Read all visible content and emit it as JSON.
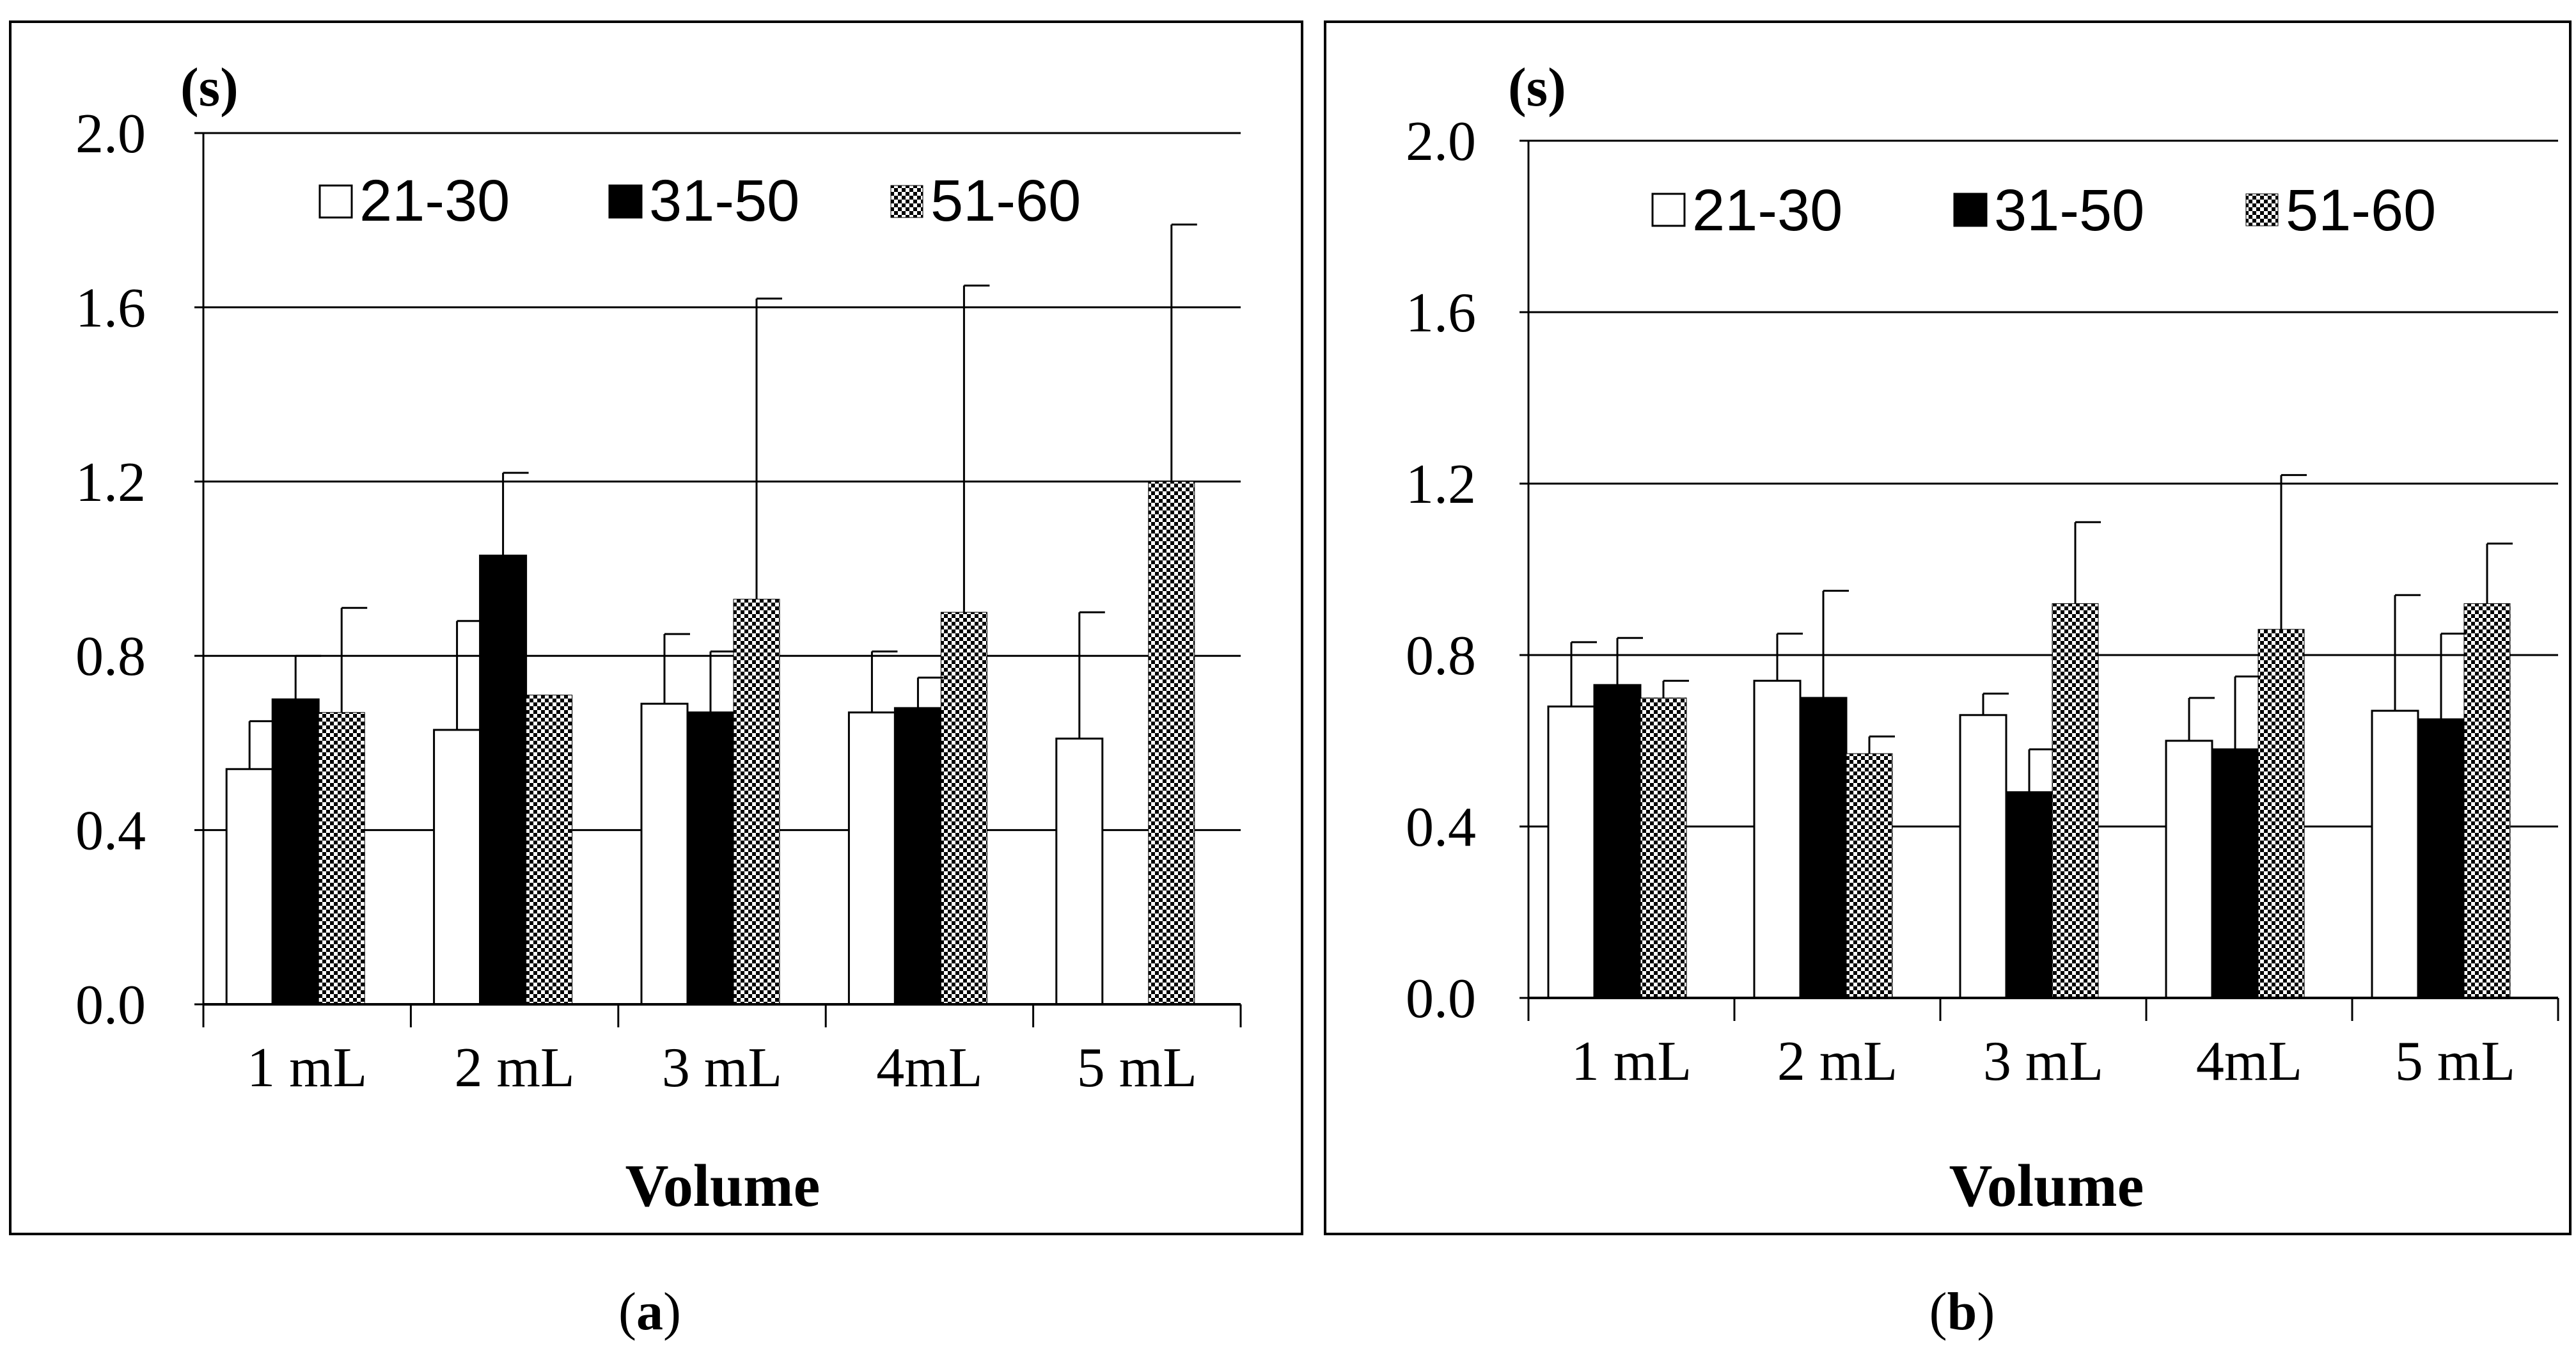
{
  "chart_data": [
    {
      "type": "bar",
      "panel_label": "a",
      "unit_label": "(s)",
      "xlabel": "Volume",
      "ylabel": "",
      "ylim": [
        0,
        2.0
      ],
      "yticks": [
        "0.0",
        "0.4",
        "0.8",
        "1.2",
        "1.6",
        "2.0"
      ],
      "grid": true,
      "legend_position": "top",
      "categories": [
        "1 mL",
        "2 mL",
        "3 mL",
        "4mL",
        "5 mL"
      ],
      "series": [
        {
          "name": "21-30",
          "fill": "white",
          "values": [
            0.54,
            0.63,
            0.69,
            0.67,
            0.61
          ],
          "errors": [
            0.11,
            0.25,
            0.16,
            0.14,
            0.29
          ]
        },
        {
          "name": "31-50",
          "fill": "black",
          "values": [
            0.7,
            1.03,
            0.67,
            0.68,
            null
          ],
          "errors": [
            0.1,
            0.19,
            0.14,
            0.07,
            null
          ]
        },
        {
          "name": "51-60",
          "fill": "checker",
          "values": [
            0.67,
            0.71,
            0.93,
            0.9,
            1.2
          ],
          "errors": [
            0.24,
            null,
            0.69,
            0.75,
            0.59
          ]
        }
      ]
    },
    {
      "type": "bar",
      "panel_label": "b",
      "unit_label": "(s)",
      "xlabel": "Volume",
      "ylabel": "",
      "ylim": [
        0,
        2.0
      ],
      "yticks": [
        "0.0",
        "0.4",
        "0.8",
        "1.2",
        "1.6",
        "2.0"
      ],
      "grid": true,
      "legend_position": "top",
      "categories": [
        "1 mL",
        "2 mL",
        "3 mL",
        "4mL",
        "5 mL"
      ],
      "series": [
        {
          "name": "21-30",
          "fill": "white",
          "values": [
            0.68,
            0.74,
            0.66,
            0.6,
            0.67
          ],
          "errors": [
            0.15,
            0.11,
            0.05,
            0.1,
            0.27
          ]
        },
        {
          "name": "31-50",
          "fill": "black",
          "values": [
            0.73,
            0.7,
            0.48,
            0.58,
            0.65
          ],
          "errors": [
            0.11,
            0.25,
            0.1,
            0.17,
            0.2
          ]
        },
        {
          "name": "51-60",
          "fill": "checker",
          "values": [
            0.7,
            0.57,
            0.92,
            0.86,
            0.92
          ],
          "errors": [
            0.04,
            0.04,
            0.19,
            0.36,
            0.14
          ]
        }
      ]
    }
  ],
  "captions": {
    "a": {
      "open": "(",
      "letter": "a",
      "close": ")"
    },
    "b": {
      "open": "(",
      "letter": "b",
      "close": ")"
    }
  },
  "colors": {
    "frame": "#000000",
    "grid": "#000000",
    "bar_black": "#000000",
    "bar_white": "#ffffff"
  }
}
